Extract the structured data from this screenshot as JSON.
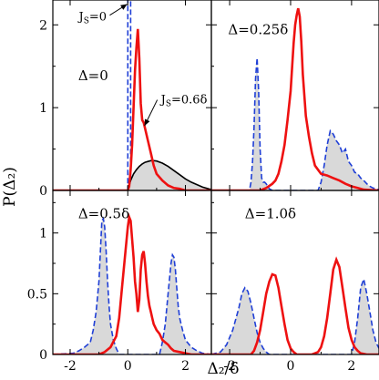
{
  "chart_data": {
    "type": "line",
    "ylabel": "P(Δ₂)",
    "xlabel": "Δ₂/δ",
    "xlim": [
      -2.6,
      2.9
    ],
    "grid": false,
    "series_styles": {
      "Js_0": {
        "color": "#1f3fd6",
        "dash": "dashed",
        "fill": "#d8d8d8"
      },
      "Js_06": {
        "color": "#ee1111",
        "dash": "solid"
      },
      "smooth": {
        "color": "#000000",
        "dash": "solid"
      }
    },
    "panels": [
      {
        "id": "top-left",
        "label": "Δ=0",
        "ylim": [
          0,
          2.3
        ],
        "yticks": [
          0,
          1,
          2
        ],
        "ytick_labels": [
          "0",
          "1",
          "2"
        ],
        "annotations": [
          {
            "text": "J",
            "sub": "S",
            "suffix": "=0",
            "pos": [
              -1.7,
              2.05
            ],
            "arrow_to": [
              -0.02,
              2.25
            ]
          },
          {
            "text": "J",
            "sub": "S",
            "suffix": "=0.6δ",
            "pos": [
              1.15,
              1.05
            ],
            "arrow_to": [
              0.58,
              0.78
            ]
          }
        ],
        "series": [
          {
            "name": "Js_0",
            "key": "Js_0",
            "x": [
              -2.6,
              0.0,
              0.0,
              0.1,
              0.1,
              2.9
            ],
            "y": [
              0,
              0,
              3.0,
              3.0,
              0,
              0
            ]
          },
          {
            "name": "smooth",
            "key": "smooth",
            "x": [
              0.0,
              0.1,
              0.2,
              0.3,
              0.4,
              0.5,
              0.6,
              0.7,
              0.8,
              0.9,
              1.0,
              1.2,
              1.4,
              1.6,
              1.8,
              2.0,
              2.2,
              2.4,
              2.6,
              2.8,
              2.9
            ],
            "y": [
              0.0,
              0.12,
              0.2,
              0.25,
              0.29,
              0.32,
              0.34,
              0.35,
              0.36,
              0.36,
              0.355,
              0.33,
              0.29,
              0.24,
              0.19,
              0.14,
              0.1,
              0.07,
              0.04,
              0.02,
              0.01
            ],
            "shade": true
          },
          {
            "name": "Js_06",
            "key": "Js_06",
            "x": [
              -2.6,
              0.0,
              0.05,
              0.1,
              0.15,
              0.2,
              0.25,
              0.3,
              0.35,
              0.4,
              0.45,
              0.5,
              0.55,
              0.6,
              0.7,
              0.8,
              0.9,
              1.0,
              1.2,
              1.4,
              1.6,
              1.8,
              2.0,
              2.9
            ],
            "y": [
              0,
              0,
              0.05,
              0.25,
              0.55,
              1.0,
              1.45,
              1.72,
              1.95,
              1.6,
              1.05,
              0.85,
              0.82,
              0.75,
              0.6,
              0.45,
              0.3,
              0.2,
              0.12,
              0.06,
              0.03,
              0.02,
              0.0,
              0.0
            ]
          }
        ]
      },
      {
        "id": "top-right",
        "label": "Δ=0.25δ",
        "ylim": [
          0,
          2.3
        ],
        "yticks": [
          0,
          1,
          2
        ],
        "ytick_labels": [
          "",
          "",
          ""
        ],
        "annotations": [],
        "series": [
          {
            "name": "Js_0",
            "key": "Js_0",
            "x": [
              -2.6,
              -1.35,
              -1.3,
              -1.25,
              -1.2,
              -1.15,
              -1.1,
              -1.05,
              -1.0,
              -0.95,
              -0.9,
              -0.85,
              -0.8,
              -0.75,
              -0.7,
              -0.6,
              0.9,
              1.0,
              1.1,
              1.2,
              1.3,
              1.4,
              1.5,
              1.6,
              1.7,
              1.8,
              1.9,
              2.0,
              2.1,
              2.2,
              2.3,
              2.4,
              2.5,
              2.6,
              2.7,
              2.8,
              2.9
            ],
            "y": [
              0,
              0,
              0.1,
              0.35,
              0.75,
              1.35,
              1.6,
              1.2,
              0.5,
              0.15,
              0.1,
              0.1,
              0.08,
              0.05,
              0.02,
              0,
              0,
              0.1,
              0.3,
              0.55,
              0.72,
              0.68,
              0.6,
              0.55,
              0.45,
              0.5,
              0.35,
              0.3,
              0.22,
              0.2,
              0.15,
              0.12,
              0.08,
              0.05,
              0.03,
              0.02,
              0.01
            ],
            "shade": true
          },
          {
            "name": "Js_06",
            "key": "Js_06",
            "x": [
              -2.6,
              -1.0,
              -0.8,
              -0.6,
              -0.5,
              -0.4,
              -0.3,
              -0.2,
              -0.1,
              0.0,
              0.05,
              0.1,
              0.15,
              0.2,
              0.25,
              0.3,
              0.35,
              0.4,
              0.5,
              0.6,
              0.7,
              0.8,
              0.9,
              1.0,
              1.2,
              1.4,
              1.6,
              1.8,
              2.0,
              2.2,
              2.4,
              2.9
            ],
            "y": [
              0,
              0,
              0.03,
              0.08,
              0.12,
              0.2,
              0.35,
              0.55,
              0.85,
              1.2,
              1.5,
              1.78,
              2.0,
              2.12,
              2.2,
              2.1,
              1.8,
              1.4,
              0.9,
              0.65,
              0.45,
              0.3,
              0.25,
              0.2,
              0.18,
              0.15,
              0.12,
              0.08,
              0.05,
              0.03,
              0.01,
              0.0
            ]
          }
        ]
      },
      {
        "id": "bottom-left",
        "label": "Δ=0.5δ",
        "ylim": [
          0,
          1.35
        ],
        "yticks": [
          0,
          0.5,
          1
        ],
        "ytick_labels": [
          "0",
          "0.5",
          "1"
        ],
        "annotations": [],
        "series": [
          {
            "name": "Js_0",
            "key": "Js_0",
            "x": [
              -2.6,
              -1.9,
              -1.7,
              -1.5,
              -1.3,
              -1.2,
              -1.1,
              -1.0,
              -0.95,
              -0.9,
              -0.85,
              -0.8,
              -0.75,
              -0.7,
              -0.65,
              -0.6,
              -0.5,
              -0.4,
              -0.3,
              1.1,
              1.2,
              1.3,
              1.4,
              1.5,
              1.55,
              1.6,
              1.65,
              1.7,
              1.75,
              1.8,
              1.9,
              2.0,
              2.2,
              2.4,
              2.6,
              2.9
            ],
            "y": [
              0,
              0.01,
              0.03,
              0.06,
              0.1,
              0.2,
              0.35,
              0.6,
              0.85,
              1.1,
              1.12,
              1.05,
              0.85,
              0.6,
              0.4,
              0.25,
              0.12,
              0.05,
              0.0,
              0.0,
              0.1,
              0.25,
              0.5,
              0.75,
              0.82,
              0.8,
              0.7,
              0.55,
              0.4,
              0.3,
              0.2,
              0.12,
              0.06,
              0.03,
              0.01,
              0.0
            ],
            "shade": true
          },
          {
            "name": "Js_06",
            "key": "Js_06",
            "x": [
              -2.6,
              -1.0,
              -0.8,
              -0.6,
              -0.4,
              -0.3,
              -0.2,
              -0.1,
              0.0,
              0.05,
              0.1,
              0.15,
              0.2,
              0.25,
              0.3,
              0.35,
              0.4,
              0.45,
              0.5,
              0.55,
              0.6,
              0.65,
              0.7,
              0.75,
              0.8,
              0.85,
              0.9,
              1.0,
              1.1,
              1.2,
              1.3,
              1.4,
              1.5,
              1.6,
              1.8,
              2.0,
              2.2,
              2.9
            ],
            "y": [
              0,
              0,
              0.02,
              0.06,
              0.15,
              0.3,
              0.55,
              0.8,
              1.05,
              1.13,
              1.1,
              0.95,
              0.8,
              0.6,
              0.5,
              0.35,
              0.45,
              0.7,
              0.82,
              0.85,
              0.75,
              0.6,
              0.48,
              0.4,
              0.35,
              0.3,
              0.25,
              0.2,
              0.17,
              0.12,
              0.1,
              0.08,
              0.05,
              0.03,
              0.02,
              0.01,
              0.0,
              0.0
            ]
          }
        ]
      },
      {
        "id": "bottom-right",
        "label": "Δ=1.0δ",
        "ylim": [
          0,
          1.35
        ],
        "yticks": [
          0,
          0.5,
          1
        ],
        "ytick_labels": [
          "",
          "",
          ""
        ],
        "annotations": [],
        "series": [
          {
            "name": "Js_0",
            "key": "Js_0",
            "x": [
              -2.6,
              -2.3,
              -2.1,
              -1.9,
              -1.7,
              -1.6,
              -1.5,
              -1.4,
              -1.3,
              -1.2,
              -1.1,
              -1.0,
              -0.9,
              -0.8,
              -0.7,
              2.0,
              2.1,
              2.2,
              2.3,
              2.4,
              2.5,
              2.6,
              2.7,
              2.8,
              2.9
            ],
            "y": [
              0,
              0.02,
              0.08,
              0.2,
              0.38,
              0.5,
              0.55,
              0.52,
              0.42,
              0.3,
              0.18,
              0.1,
              0.05,
              0.02,
              0.0,
              0.0,
              0.1,
              0.3,
              0.55,
              0.62,
              0.5,
              0.35,
              0.2,
              0.1,
              0.05
            ],
            "shade": true
          },
          {
            "name": "Js_06",
            "key": "Js_06",
            "x": [
              -2.6,
              -1.3,
              -1.2,
              -1.1,
              -1.0,
              -0.9,
              -0.8,
              -0.7,
              -0.6,
              -0.5,
              -0.4,
              -0.3,
              -0.2,
              -0.1,
              0.0,
              0.1,
              0.2,
              0.3,
              0.5,
              0.7,
              0.9,
              1.0,
              1.1,
              1.2,
              1.3,
              1.4,
              1.5,
              1.6,
              1.7,
              1.8,
              1.9,
              2.0,
              2.1,
              2.2,
              2.3,
              2.5,
              2.9
            ],
            "y": [
              0,
              0,
              0.03,
              0.1,
              0.2,
              0.35,
              0.5,
              0.6,
              0.66,
              0.65,
              0.55,
              0.4,
              0.25,
              0.12,
              0.05,
              0.02,
              0.0,
              0.0,
              0.0,
              0.0,
              0.02,
              0.06,
              0.15,
              0.3,
              0.5,
              0.7,
              0.78,
              0.72,
              0.55,
              0.38,
              0.22,
              0.12,
              0.06,
              0.03,
              0.01,
              0.0,
              0.0
            ]
          }
        ]
      }
    ],
    "xticks": [
      -2,
      0,
      2
    ],
    "xtick_labels": [
      "-2",
      "0",
      "2"
    ]
  }
}
